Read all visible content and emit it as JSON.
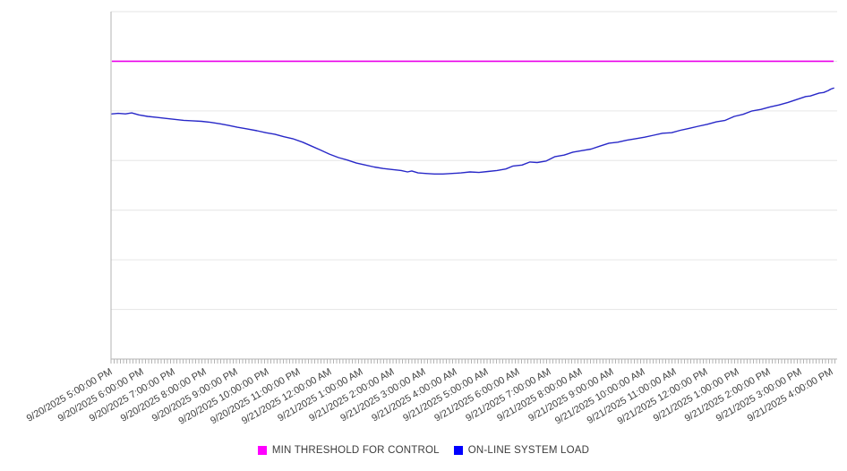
{
  "chart_data": {
    "type": "line",
    "title": "",
    "xlabel": "",
    "ylabel": "",
    "grid": true,
    "legend_position": "bottom-center",
    "y_axis": {
      "tick_labels_visible": false,
      "gridline_count": 8,
      "ylim": [
        0,
        7
      ],
      "note": "y axis shows gridlines only (no numeric labels); series values expressed in gridline units, bottom axis = 0, top gridline = 7"
    },
    "x_axis": {
      "start": "9/20/2025 5:00:00 PM",
      "end_of_data_hours": 23.03,
      "major_tick_interval": "1 hour",
      "minor_ticks_per_hour": 10
    },
    "x_tick_labels": [
      "9/20/2025 5:00:00 PM",
      "9/20/2025 6:00:00 PM",
      "9/20/2025 7:00:00 PM",
      "9/20/2025 8:00:00 PM",
      "9/20/2025 9:00:00 PM",
      "9/20/2025 10:00:00 PM",
      "9/20/2025 11:00:00 PM",
      "9/21/2025 12:00:00 AM",
      "9/21/2025 1:00:00 AM",
      "9/21/2025 2:00:00 AM",
      "9/21/2025 3:00:00 AM",
      "9/21/2025 4:00:00 AM",
      "9/21/2025 5:00:00 AM",
      "9/21/2025 6:00:00 AM",
      "9/21/2025 7:00:00 AM",
      "9/21/2025 8:00:00 AM",
      "9/21/2025 9:00:00 AM",
      "9/21/2025 10:00:00 AM",
      "9/21/2025 11:00:00 AM",
      "9/21/2025 12:00:00 PM",
      "9/21/2025 1:00:00 PM",
      "9/21/2025 2:00:00 PM",
      "9/21/2025 3:00:00 PM",
      "9/21/2025 4:00:00 PM"
    ],
    "series": [
      {
        "name": "MIN THRESHOLD FOR CONTROL",
        "type": "constant",
        "value": 6.0,
        "line_color": "#ea00ea",
        "swatch_color": "#ff00ff"
      },
      {
        "name": "ON-LINE SYSTEM LOAD",
        "type": "polyline",
        "line_color": "#2828c8",
        "swatch_color": "#0000ff",
        "x_hours": [
          0,
          0.2,
          0.43,
          0.63,
          0.86,
          1.14,
          1.43,
          1.71,
          2.0,
          2.29,
          2.57,
          2.86,
          3.14,
          3.46,
          3.71,
          4.0,
          4.29,
          4.63,
          4.91,
          5.2,
          5.49,
          5.77,
          6.09,
          6.37,
          6.66,
          6.94,
          7.23,
          7.51,
          7.8,
          8.09,
          8.37,
          8.66,
          8.94,
          9.23,
          9.43,
          9.57,
          9.77,
          10.0,
          10.29,
          10.57,
          10.86,
          11.14,
          11.43,
          11.71,
          12.0,
          12.29,
          12.57,
          12.8,
          13.09,
          13.34,
          13.57,
          13.86,
          14.14,
          14.43,
          14.71,
          15.0,
          15.29,
          15.57,
          15.86,
          16.14,
          16.43,
          16.71,
          17.0,
          17.29,
          17.57,
          17.86,
          18.14,
          18.43,
          18.71,
          19.0,
          19.29,
          19.57,
          19.86,
          20.14,
          20.43,
          20.71,
          21.0,
          21.29,
          21.57,
          21.86,
          22.14,
          22.29,
          22.43,
          22.57,
          22.71,
          22.86,
          22.94,
          23.03
        ],
        "values": [
          4.94,
          4.95,
          4.94,
          4.96,
          4.92,
          4.89,
          4.87,
          4.85,
          4.83,
          4.81,
          4.8,
          4.79,
          4.77,
          4.74,
          4.71,
          4.67,
          4.64,
          4.6,
          4.56,
          4.53,
          4.48,
          4.44,
          4.37,
          4.29,
          4.21,
          4.13,
          4.06,
          4.01,
          3.95,
          3.91,
          3.87,
          3.84,
          3.82,
          3.8,
          3.77,
          3.79,
          3.75,
          3.74,
          3.73,
          3.73,
          3.74,
          3.75,
          3.77,
          3.76,
          3.78,
          3.8,
          3.83,
          3.89,
          3.91,
          3.97,
          3.96,
          3.99,
          4.08,
          4.11,
          4.17,
          4.2,
          4.23,
          4.29,
          4.35,
          4.37,
          4.41,
          4.44,
          4.47,
          4.51,
          4.55,
          4.56,
          4.61,
          4.65,
          4.69,
          4.73,
          4.78,
          4.81,
          4.89,
          4.93,
          5.0,
          5.03,
          5.08,
          5.12,
          5.17,
          5.23,
          5.29,
          5.3,
          5.33,
          5.36,
          5.37,
          5.41,
          5.44,
          5.46
        ]
      }
    ],
    "colors": {
      "gridline": "#e6e6e6",
      "axis": "#b3b3b3",
      "tick_label": "#3f3f3f",
      "background": "#ffffff"
    }
  },
  "legend": {
    "items": [
      {
        "label": "MIN THRESHOLD FOR CONTROL"
      },
      {
        "label": "ON-LINE SYSTEM LOAD"
      }
    ]
  }
}
